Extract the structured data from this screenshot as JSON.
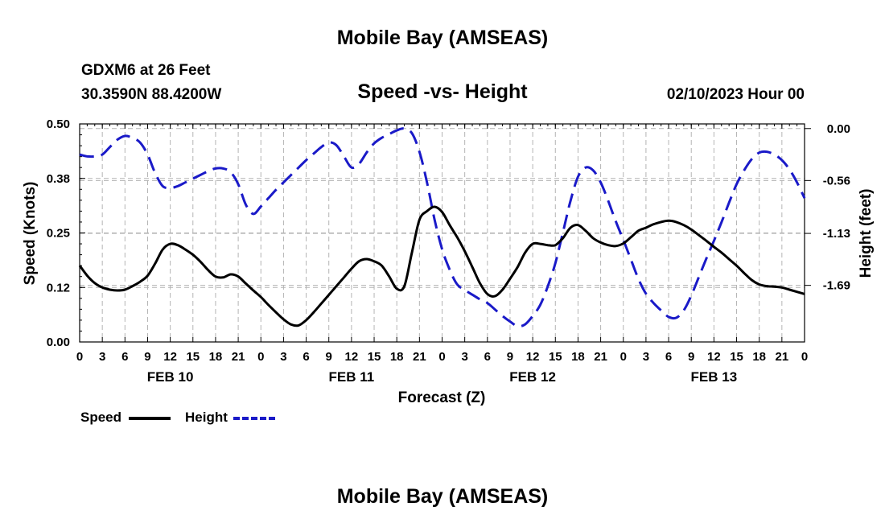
{
  "header": {
    "title": "Mobile Bay (AMSEAS)",
    "station": "GDXM6 at 26 Feet",
    "coords": "30.3590N  88.4200W",
    "datetime": "02/10/2023 Hour 00"
  },
  "footer": {
    "title": "Mobile Bay (AMSEAS)"
  },
  "legend": {
    "speed_label": "Speed",
    "height_label": "Height"
  },
  "colors": {
    "speed": "#000000",
    "height": "#1a1ac8",
    "grid": "#b4b4b4"
  },
  "chart_data": {
    "type": "line",
    "title": "Speed -vs- Height",
    "xlabel": "Forecast (Z)",
    "ylabel_left": "Speed (Knots)",
    "ylabel_right": "Height (feet)",
    "x_range_hours": [
      0,
      96
    ],
    "x_tick_step_hours": 3,
    "x_tick_labels": [
      "0",
      "3",
      "6",
      "9",
      "12",
      "15",
      "18",
      "21",
      "0",
      "3",
      "6",
      "9",
      "12",
      "15",
      "18",
      "21",
      "0",
      "3",
      "6",
      "9",
      "12",
      "15",
      "18",
      "21",
      "0",
      "3",
      "6",
      "9",
      "12",
      "15",
      "18",
      "21",
      "0"
    ],
    "day_labels": [
      {
        "hour": 12,
        "label": "FEB 10"
      },
      {
        "hour": 36,
        "label": "FEB 11"
      },
      {
        "hour": 60,
        "label": "FEB 12"
      },
      {
        "hour": 84,
        "label": "FEB 13"
      }
    ],
    "y_left": {
      "min": 0.0,
      "max": 0.5,
      "ticks": [
        0.0,
        0.125,
        0.25,
        0.375,
        0.5
      ],
      "tick_labels": [
        "0.00",
        "0.12",
        "0.25",
        "0.38",
        "0.50"
      ]
    },
    "y_right": {
      "min": -2.3,
      "max": 0.05,
      "ticks": [
        0.0,
        -0.56,
        -1.13,
        -1.69
      ],
      "tick_labels": [
        "0.00",
        "-0.56",
        "-1.13",
        "-1.69"
      ]
    },
    "grid": true,
    "series": [
      {
        "name": "Speed",
        "axis": "left",
        "style": "solid",
        "x": [
          0,
          1,
          2,
          3,
          4,
          5,
          6,
          7,
          8,
          9,
          10,
          11,
          12,
          13,
          14,
          15,
          16,
          17,
          18,
          19,
          20,
          21,
          22,
          23,
          24,
          25,
          26,
          27,
          28,
          29,
          30,
          31,
          32,
          33,
          34,
          35,
          36,
          37,
          38,
          39,
          40,
          41,
          42,
          43,
          44,
          45,
          46,
          47,
          48,
          49,
          50,
          51,
          52,
          53,
          54,
          55,
          56,
          57,
          58,
          59,
          60,
          61,
          62,
          63,
          64,
          65,
          66,
          67,
          68,
          69,
          70,
          71,
          72,
          73,
          74,
          75,
          76,
          77,
          78,
          79,
          80,
          81,
          82,
          83,
          84,
          85,
          86,
          87,
          88,
          89,
          90,
          91,
          92,
          93,
          94,
          95,
          96
        ],
        "values": [
          0.175,
          0.152,
          0.135,
          0.125,
          0.12,
          0.118,
          0.12,
          0.128,
          0.138,
          0.152,
          0.18,
          0.212,
          0.225,
          0.222,
          0.212,
          0.2,
          0.184,
          0.165,
          0.15,
          0.148,
          0.155,
          0.15,
          0.134,
          0.118,
          0.103,
          0.085,
          0.068,
          0.052,
          0.04,
          0.038,
          0.05,
          0.068,
          0.088,
          0.108,
          0.128,
          0.148,
          0.168,
          0.185,
          0.19,
          0.185,
          0.175,
          0.15,
          0.122,
          0.128,
          0.205,
          0.28,
          0.3,
          0.31,
          0.298,
          0.268,
          0.24,
          0.208,
          0.172,
          0.135,
          0.11,
          0.105,
          0.12,
          0.145,
          0.172,
          0.205,
          0.225,
          0.225,
          0.222,
          0.222,
          0.238,
          0.262,
          0.268,
          0.255,
          0.238,
          0.228,
          0.222,
          0.22,
          0.226,
          0.24,
          0.255,
          0.262,
          0.27,
          0.275,
          0.278,
          0.275,
          0.268,
          0.258,
          0.245,
          0.232,
          0.218,
          0.205,
          0.19,
          0.175,
          0.158,
          0.142,
          0.132,
          0.128,
          0.127,
          0.125,
          0.12,
          0.115,
          0.11
        ]
      },
      {
        "name": "Height",
        "axis": "right",
        "style": "dashed",
        "x": [
          0,
          1,
          2,
          3,
          4,
          5,
          6,
          7,
          8,
          9,
          10,
          11,
          12,
          13,
          14,
          15,
          16,
          17,
          18,
          19,
          20,
          21,
          22,
          23,
          24,
          25,
          26,
          27,
          28,
          29,
          30,
          31,
          32,
          33,
          34,
          35,
          36,
          37,
          38,
          39,
          40,
          41,
          42,
          43,
          44,
          45,
          46,
          47,
          48,
          49,
          50,
          51,
          52,
          53,
          54,
          55,
          56,
          57,
          58,
          59,
          60,
          61,
          62,
          63,
          64,
          65,
          66,
          67,
          68,
          69,
          70,
          71,
          72,
          73,
          74,
          75,
          76,
          77,
          78,
          79,
          80,
          81,
          82,
          83,
          84,
          85,
          86,
          87,
          88,
          89,
          90,
          91,
          92,
          93,
          94,
          95,
          96
        ],
        "values": [
          -0.28,
          -0.3,
          -0.3,
          -0.28,
          -0.2,
          -0.12,
          -0.08,
          -0.1,
          -0.15,
          -0.28,
          -0.48,
          -0.62,
          -0.64,
          -0.62,
          -0.58,
          -0.54,
          -0.5,
          -0.46,
          -0.43,
          -0.43,
          -0.47,
          -0.6,
          -0.82,
          -0.92,
          -0.84,
          -0.75,
          -0.66,
          -0.58,
          -0.5,
          -0.42,
          -0.34,
          -0.27,
          -0.2,
          -0.15,
          -0.18,
          -0.3,
          -0.42,
          -0.38,
          -0.26,
          -0.16,
          -0.1,
          -0.06,
          -0.02,
          0.0,
          -0.05,
          -0.25,
          -0.58,
          -0.98,
          -1.3,
          -1.52,
          -1.68,
          -1.74,
          -1.79,
          -1.84,
          -1.88,
          -1.95,
          -2.02,
          -2.08,
          -2.13,
          -2.11,
          -2.02,
          -1.9,
          -1.7,
          -1.45,
          -1.12,
          -0.78,
          -0.52,
          -0.42,
          -0.45,
          -0.58,
          -0.78,
          -1.0,
          -1.2,
          -1.41,
          -1.62,
          -1.78,
          -1.88,
          -1.96,
          -2.03,
          -2.04,
          -1.96,
          -1.8,
          -1.6,
          -1.4,
          -1.21,
          -1.01,
          -0.8,
          -0.6,
          -0.45,
          -0.33,
          -0.26,
          -0.25,
          -0.28,
          -0.34,
          -0.44,
          -0.58,
          -0.75
        ]
      }
    ]
  }
}
